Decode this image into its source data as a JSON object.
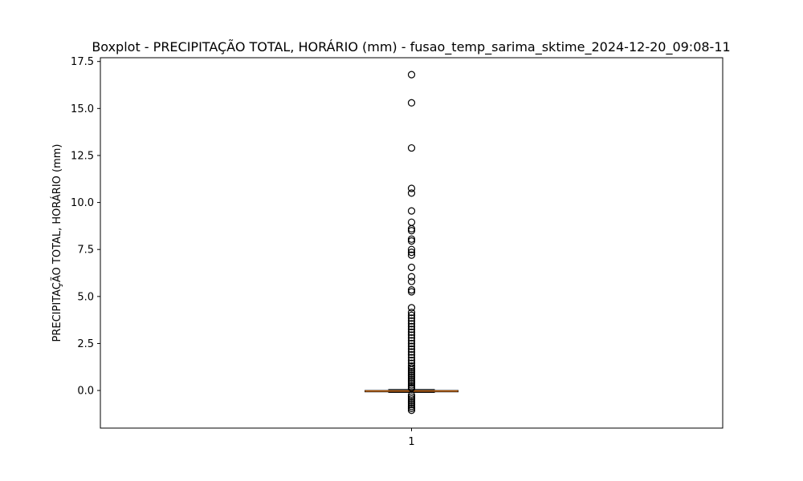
{
  "chart_data": {
    "type": "box",
    "title": "Boxplot - PRECIPITAÇÃO TOTAL, HORÁRIO (mm) - fusao_temp_sarima_sktime_2024-12-20_09:08-11",
    "xlabel": "",
    "ylabel": "PRECIPITAÇÃO TOTAL, HORÁRIO (mm)",
    "categories": [
      "1"
    ],
    "ylim": [
      -2.0,
      17.7
    ],
    "yticks": [
      {
        "value": 0.0,
        "label": "0.0"
      },
      {
        "value": 2.5,
        "label": "2.5"
      },
      {
        "value": 5.0,
        "label": "5.0"
      },
      {
        "value": 7.5,
        "label": "7.5"
      },
      {
        "value": 10.0,
        "label": "10.0"
      },
      {
        "value": 12.5,
        "label": "12.5"
      },
      {
        "value": 15.0,
        "label": "15.0"
      },
      {
        "value": 17.5,
        "label": "17.5"
      }
    ],
    "grid": false,
    "box": {
      "q1": -0.07,
      "median": -0.03,
      "q3": 0.0,
      "whisker_low": -0.1,
      "whisker_high": 0.05,
      "outliers": [
        16.8,
        15.3,
        12.9,
        10.75,
        10.5,
        9.55,
        8.95,
        8.6,
        8.5,
        8.05,
        7.95,
        7.5,
        7.35,
        7.2,
        6.55,
        6.05,
        5.8,
        5.35,
        5.25,
        4.4,
        4.15,
        4.0,
        3.85,
        3.7,
        3.55,
        3.4,
        3.25,
        3.1,
        2.95,
        2.8,
        2.65,
        2.5,
        2.35,
        2.2,
        2.05,
        1.9,
        1.75,
        1.6,
        1.45,
        1.3,
        1.2,
        1.1,
        1.0,
        0.9,
        0.8,
        0.7,
        0.6,
        0.5,
        0.4,
        0.3,
        0.2,
        0.12,
        -0.25,
        -0.35,
        -0.45,
        -0.55,
        -0.65,
        -0.75,
        -0.85,
        -0.95,
        -1.05
      ]
    },
    "colors": {
      "box_edge": "#000000",
      "median": "#ff7f0e",
      "outlier_edge": "#000000"
    }
  }
}
